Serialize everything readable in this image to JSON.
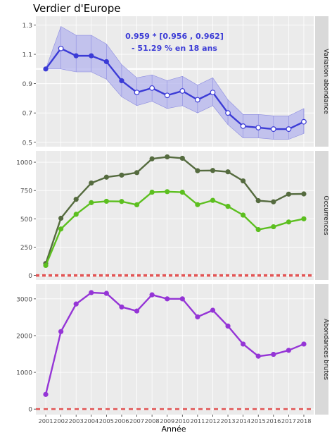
{
  "title": "Verdier d'Europe",
  "xlabel": "Année",
  "colors": {
    "panel_bg": "#ebebeb",
    "strip_bg": "#d9d9d9",
    "grid": "#ffffff",
    "abundance_line": "#3b3bd6",
    "abundance_band": "#b8b8ee",
    "occ_dark": "#556b3f",
    "occ_light": "#5cbf1f",
    "raw": "#9535d6",
    "zero_line": "#e25555",
    "annotation": "#3b3bd6"
  },
  "chart_data": [
    {
      "type": "line",
      "strip_label": "Variation abondance",
      "annotation_line1": "0.959 *  [0.956 , 0.962]",
      "annotation_line2": "- 51.29 % en 18 ans",
      "x": [
        2001,
        2002,
        2003,
        2004,
        2005,
        2006,
        2007,
        2008,
        2009,
        2010,
        2011,
        2012,
        2013,
        2014,
        2015,
        2016,
        2017,
        2018
      ],
      "series": [
        {
          "values": [
            1.0,
            1.14,
            1.09,
            1.09,
            1.05,
            0.92,
            0.84,
            0.87,
            0.82,
            0.85,
            0.79,
            0.84,
            0.7,
            0.61,
            0.6,
            0.59,
            0.59,
            0.64
          ],
          "lower": [
            1.0,
            1.0,
            0.98,
            0.98,
            0.93,
            0.81,
            0.75,
            0.78,
            0.73,
            0.75,
            0.7,
            0.75,
            0.62,
            0.53,
            0.53,
            0.52,
            0.52,
            0.56
          ],
          "upper": [
            1.0,
            1.29,
            1.23,
            1.23,
            1.17,
            1.03,
            0.94,
            0.96,
            0.92,
            0.95,
            0.89,
            0.94,
            0.79,
            0.69,
            0.69,
            0.68,
            0.68,
            0.73
          ],
          "filled": [
            true,
            false,
            true,
            true,
            true,
            true,
            false,
            false,
            false,
            false,
            false,
            false,
            false,
            false,
            false,
            false,
            false,
            false
          ]
        }
      ],
      "reference_line": 1.0,
      "ylim": [
        0.47,
        1.36
      ],
      "yticks": [
        0.5,
        0.7,
        0.9,
        1.1,
        1.3
      ]
    },
    {
      "type": "line",
      "strip_label": "Occurrences",
      "x": [
        2001,
        2002,
        2003,
        2004,
        2005,
        2006,
        2007,
        2008,
        2009,
        2010,
        2011,
        2012,
        2013,
        2014,
        2015,
        2016,
        2017,
        2018
      ],
      "series": [
        {
          "values": [
            105,
            505,
            672,
            816,
            868,
            886,
            908,
            1030,
            1047,
            1035,
            925,
            927,
            915,
            835,
            660,
            650,
            718,
            720
          ]
        },
        {
          "values": [
            88,
            410,
            540,
            643,
            655,
            653,
            624,
            735,
            740,
            735,
            625,
            663,
            610,
            533,
            405,
            430,
            472,
            500
          ]
        }
      ],
      "zero_line": 0,
      "ylim": [
        -40,
        1100
      ],
      "yticks": [
        0,
        250,
        500,
        750,
        1000
      ]
    },
    {
      "type": "line",
      "strip_label": "Abondances brutes",
      "x": [
        2001,
        2002,
        2003,
        2004,
        2005,
        2006,
        2007,
        2008,
        2009,
        2010,
        2011,
        2012,
        2013,
        2014,
        2015,
        2016,
        2017,
        2018
      ],
      "series": [
        {
          "values": [
            400,
            2110,
            2860,
            3170,
            3150,
            2780,
            2670,
            3110,
            3000,
            3000,
            2510,
            2690,
            2260,
            1770,
            1440,
            1490,
            1600,
            1770
          ]
        }
      ],
      "zero_line": 0,
      "ylim": [
        -150,
        3400
      ],
      "yticks": [
        0,
        1000,
        2000,
        3000
      ]
    }
  ]
}
